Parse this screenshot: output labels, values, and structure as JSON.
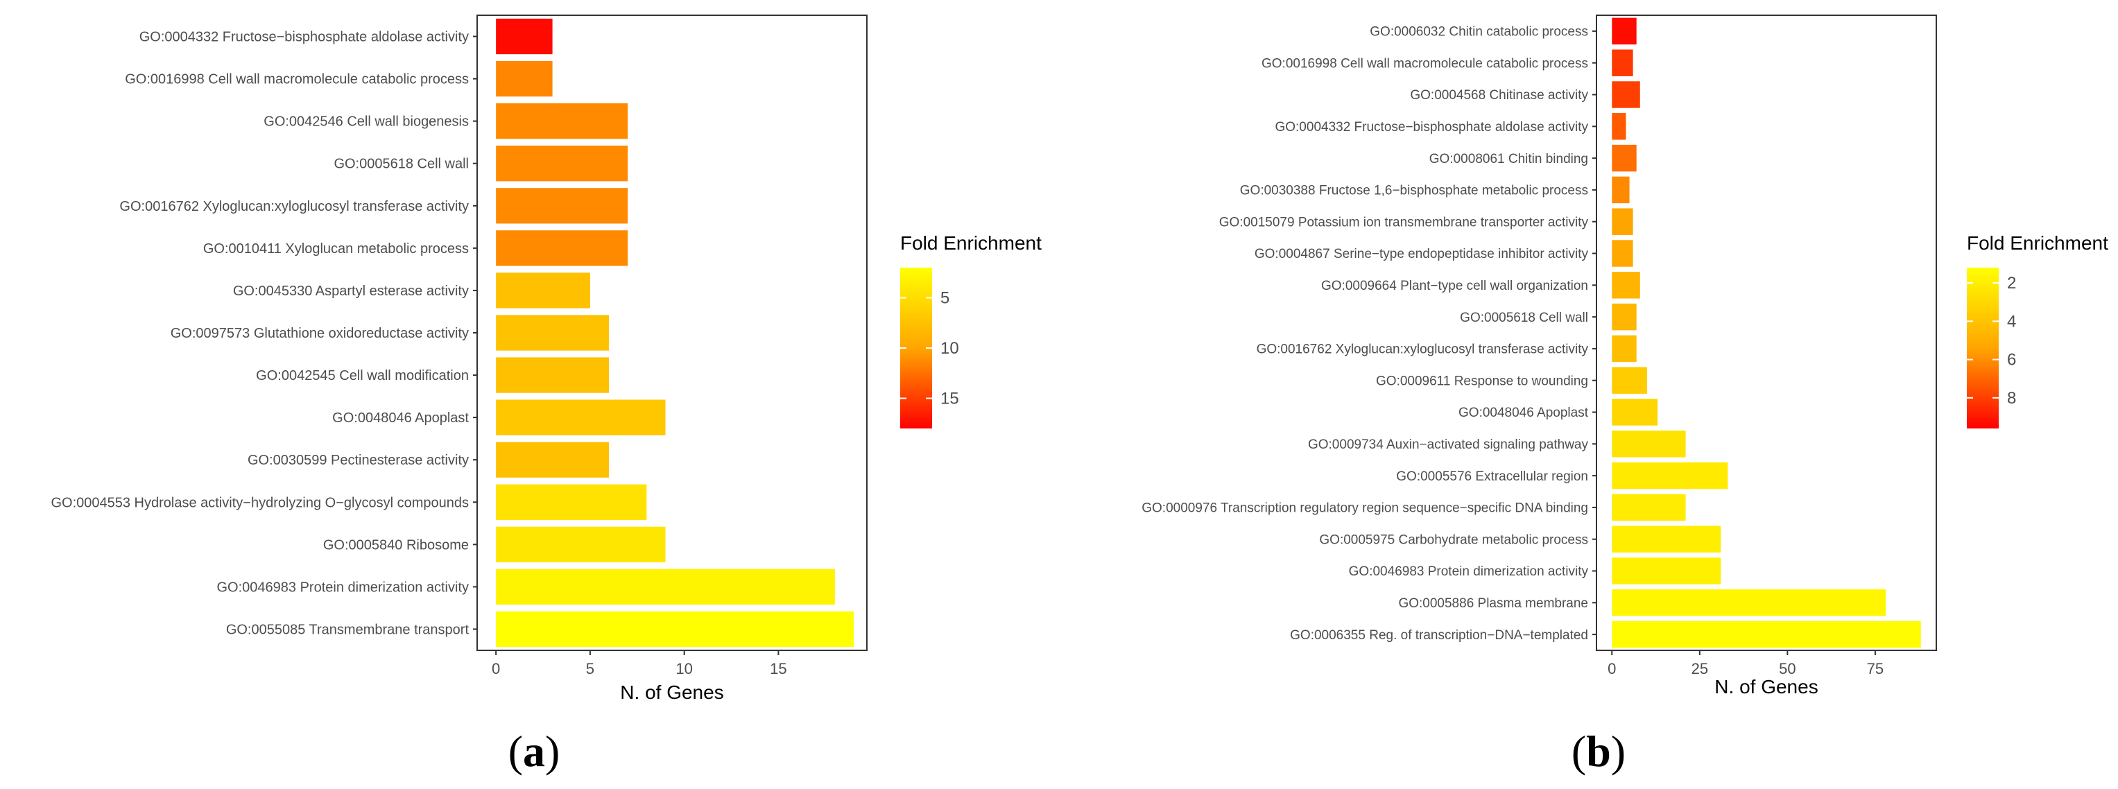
{
  "chart_data": [
    {
      "type": "bar",
      "orientation": "horizontal",
      "panel_label": "(a)",
      "panel_letter": "a",
      "xlabel": "N. of Genes",
      "xlim": [
        -1,
        19.7
      ],
      "xticks": [
        0,
        5,
        10,
        15
      ],
      "legend": {
        "title": "Fold Enrichment",
        "placement": "right",
        "min": 2.0,
        "max": 18.0,
        "ticks": [
          5,
          10,
          15
        ],
        "low_color": "#FFFF00",
        "high_color": "#FF0000"
      },
      "categories": [
        "GO:0004332 Fructose−bisphosphate aldolase activity",
        "GO:0016998 Cell wall macromolecule catabolic process",
        "GO:0042546 Cell wall biogenesis",
        "GO:0005618 Cell wall",
        "GO:0016762 Xyloglucan:xyloglucosyl transferase activity",
        "GO:0010411 Xyloglucan metabolic process",
        "GO:0045330 Aspartyl esterase activity",
        "GO:0097573 Glutathione oxidoreductase activity",
        "GO:0042545 Cell wall modification",
        "GO:0048046 Apoplast",
        "GO:0030599 Pectinesterase activity",
        "GO:0004553 Hydrolase activity−hydrolyzing O−glycosyl compounds",
        "GO:0005840 Ribosome",
        "GO:0046983 Protein dimerization activity",
        "GO:0055085 Transmembrane transport"
      ],
      "values": [
        3,
        3,
        7,
        7,
        7,
        7,
        5,
        6,
        6,
        9,
        6,
        8,
        9,
        18,
        19
      ],
      "fold_enrichment": [
        17.5,
        11.5,
        11.3,
        11.3,
        11.3,
        11.3,
        7.6,
        7.4,
        7.6,
        7.0,
        7.6,
        4.6,
        4.2,
        3.0,
        2.0
      ]
    },
    {
      "type": "bar",
      "orientation": "horizontal",
      "panel_label": "(b)",
      "panel_letter": "b",
      "xlabel": "N. of Genes",
      "xlim": [
        -4.4,
        92.4
      ],
      "xticks": [
        0,
        25,
        50,
        75
      ],
      "legend": {
        "title": "Fold Enrichment",
        "placement": "right",
        "min": 1.2,
        "max": 9.6,
        "ticks": [
          2,
          4,
          6,
          8
        ],
        "low_color": "#FFFF00",
        "high_color": "#FF0000"
      },
      "categories": [
        "GO:0006032 Chitin catabolic process",
        "GO:0016998 Cell wall macromolecule catabolic process",
        "GO:0004568 Chitinase activity",
        "GO:0004332 Fructose−bisphosphate aldolase activity",
        "GO:0008061 Chitin binding",
        "GO:0030388 Fructose 1,6−bisphosphate metabolic process",
        "GO:0015079 Potassium ion transmembrane transporter activity",
        "GO:0004867 Serine−type endopeptidase inhibitor activity",
        "GO:0009664 Plant−type cell wall organization",
        "GO:0005618 Cell wall",
        "GO:0016762 Xyloglucan:xyloglucosyl transferase activity",
        "GO:0009611 Response to wounding",
        "GO:0048046 Apoplast",
        "GO:0009734 Auxin−activated signaling pathway",
        "GO:0005576 Extracellular region",
        "GO:0000976 Transcription regulatory region sequence−specific DNA binding",
        "GO:0005975 Carbohydrate metabolic process",
        "GO:0046983 Protein dimerization activity",
        "GO:0005886 Plasma membrane",
        "GO:0006355 Reg. of transcription−DNA−templated"
      ],
      "values": [
        7,
        6,
        8,
        4,
        7,
        5,
        6,
        6,
        8,
        7,
        7,
        10,
        13,
        21,
        33,
        21,
        31,
        31,
        78,
        88
      ],
      "fold_enrichment": [
        9.3,
        8.2,
        8.0,
        7.3,
        6.8,
        6.1,
        5.4,
        5.2,
        4.7,
        4.6,
        4.3,
        3.6,
        3.1,
        2.5,
        2.2,
        2.1,
        2.0,
        1.9,
        1.6,
        1.4
      ]
    }
  ]
}
